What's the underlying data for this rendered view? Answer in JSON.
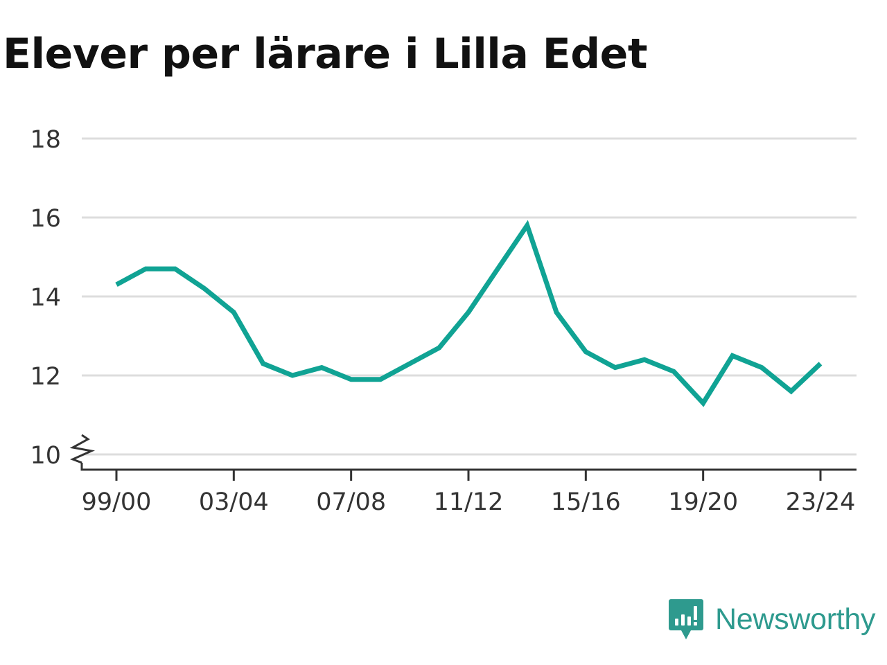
{
  "chart_data": {
    "type": "line",
    "title": "Elever per lärare i Lilla Edet",
    "xlabel": "",
    "ylabel": "",
    "x": [
      "99/00",
      "00/01",
      "01/02",
      "02/03",
      "03/04",
      "04/05",
      "05/06",
      "06/07",
      "07/08",
      "08/09",
      "09/10",
      "10/11",
      "11/12",
      "12/13",
      "13/14",
      "14/15",
      "15/16",
      "16/17",
      "17/18",
      "18/19",
      "19/20",
      "20/21",
      "21/22",
      "22/23",
      "23/24"
    ],
    "x_tick_labels": [
      "99/00",
      "03/04",
      "07/08",
      "11/12",
      "15/16",
      "19/20",
      "23/24"
    ],
    "series": [
      {
        "values": [
          14.3,
          14.7,
          14.7,
          14.2,
          13.6,
          12.3,
          12.0,
          12.2,
          11.9,
          11.9,
          12.3,
          12.7,
          13.6,
          14.7,
          15.8,
          13.6,
          12.6,
          12.2,
          12.4,
          12.1,
          11.3,
          12.5,
          12.2,
          11.6,
          12.3
        ]
      }
    ],
    "ylim": [
      10,
      18
    ],
    "y_ticks": [
      10,
      12,
      14,
      16,
      18
    ],
    "y_axis_break": true,
    "grid": true,
    "line_color": "#10a394"
  },
  "brand": {
    "name": "Newsworthy",
    "icon": "newsworthy-logo-icon",
    "color": "#2e9a8e"
  }
}
